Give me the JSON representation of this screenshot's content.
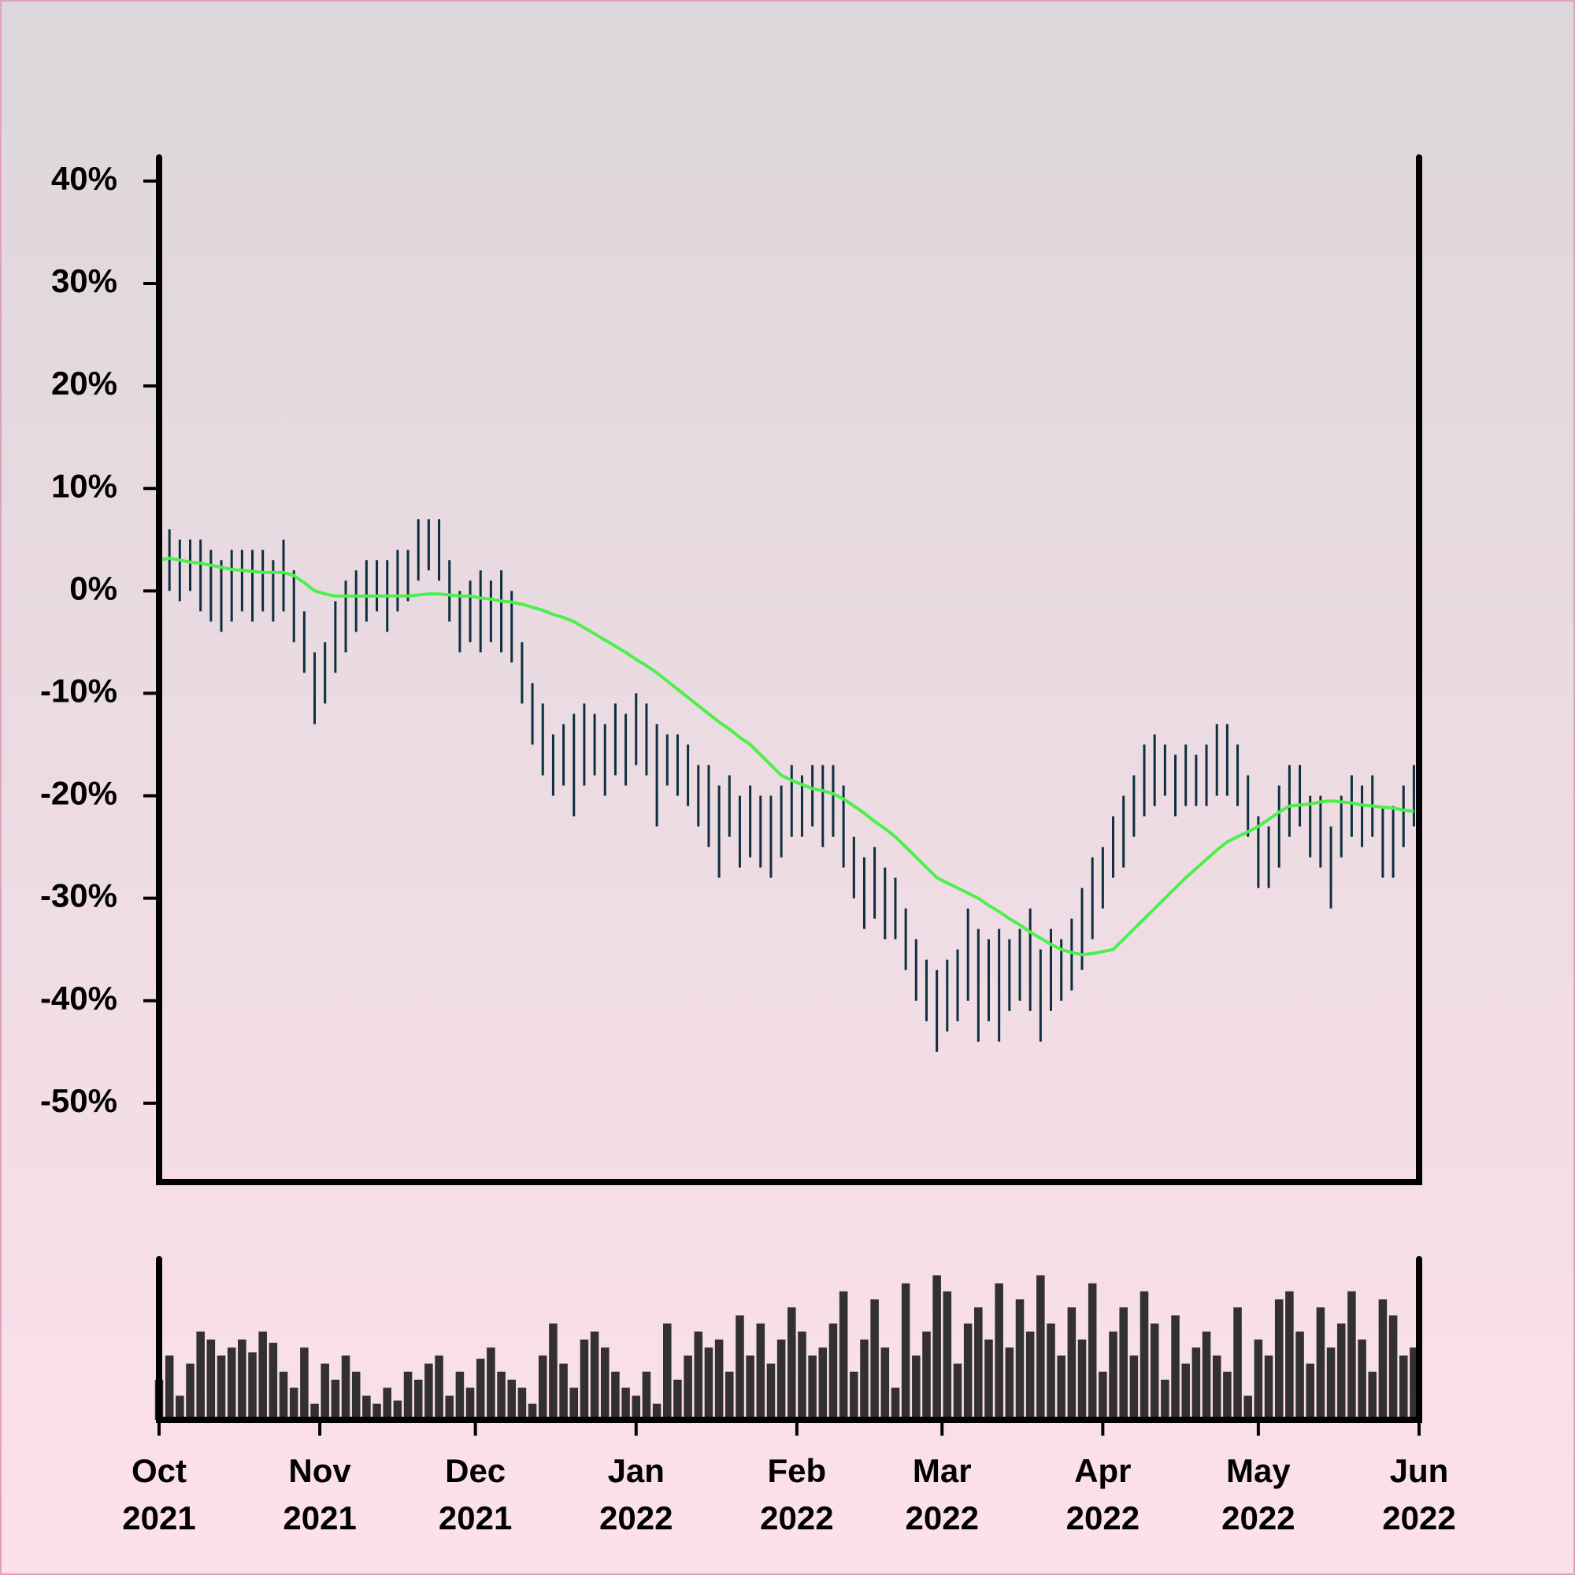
{
  "chart_data": [
    {
      "type": "range",
      "x": [
        0,
        2,
        4,
        6,
        8,
        10,
        12,
        14,
        16,
        18,
        20,
        22,
        24,
        26,
        28,
        30,
        32,
        34,
        36,
        38,
        40,
        42,
        44,
        46,
        48,
        50,
        52,
        54,
        56,
        58,
        60,
        62,
        64,
        66,
        68,
        70,
        72,
        74,
        76,
        78,
        80,
        82,
        84,
        86,
        88,
        90,
        92,
        94,
        96,
        98,
        100,
        102,
        104,
        106,
        108,
        110,
        112,
        114,
        116,
        118,
        120,
        122,
        124,
        126,
        128,
        130,
        132,
        134,
        136,
        138,
        140,
        142,
        144,
        146,
        148,
        150,
        152,
        154,
        156,
        158,
        160,
        162,
        164,
        166,
        168,
        170,
        172,
        174,
        176,
        178,
        180,
        182,
        184,
        186,
        188,
        190,
        192,
        194,
        196,
        198,
        200,
        202,
        204,
        206,
        208,
        210,
        212,
        214,
        216,
        218,
        220,
        222,
        224,
        226,
        228,
        230,
        232,
        234,
        236,
        238,
        240,
        242
      ],
      "low": [
        -1,
        0,
        -1,
        0,
        -2,
        -3,
        -4,
        -3,
        -2,
        -3,
        -2,
        -3,
        -2,
        -5,
        -8,
        -13,
        -11,
        -8,
        -6,
        -4,
        -3,
        -2,
        -4,
        -2,
        -1,
        1,
        2,
        1,
        -3,
        -6,
        -5,
        -6,
        -5,
        -6,
        -7,
        -11,
        -15,
        -18,
        -20,
        -19,
        -22,
        -19,
        -18,
        -20,
        -18,
        -19,
        -17,
        -18,
        -23,
        -19,
        -20,
        -21,
        -23,
        -25,
        -28,
        -24,
        -27,
        -26,
        -27,
        -28,
        -26,
        -24,
        -24,
        -23,
        -25,
        -24,
        -27,
        -30,
        -33,
        -32,
        -34,
        -34,
        -37,
        -40,
        -42,
        -45,
        -43,
        -42,
        -40,
        -44,
        -42,
        -44,
        -41,
        -40,
        -41,
        -44,
        -41,
        -40,
        -39,
        -37,
        -34,
        -31,
        -28,
        -27,
        -24,
        -22,
        -21,
        -20,
        -22,
        -21,
        -21,
        -21,
        -20,
        -20,
        -21,
        -24,
        -29,
        -29,
        -27,
        -24,
        -23,
        -26,
        -27,
        -31,
        -26,
        -24,
        -25,
        -24,
        -28,
        -28,
        -25,
        -23
      ],
      "high": [
        6,
        6,
        5,
        5,
        5,
        4,
        3,
        4,
        4,
        4,
        4,
        3,
        5,
        2,
        -2,
        -6,
        -5,
        -1,
        1,
        2,
        3,
        3,
        3,
        4,
        4,
        7,
        7,
        7,
        3,
        0,
        1,
        2,
        1,
        2,
        0,
        -5,
        -9,
        -11,
        -14,
        -13,
        -12,
        -11,
        -12,
        -13,
        -11,
        -12,
        -10,
        -11,
        -13,
        -14,
        -14,
        -15,
        -17,
        -17,
        -19,
        -18,
        -20,
        -19,
        -20,
        -20,
        -19,
        -17,
        -18,
        -17,
        -17,
        -17,
        -19,
        -24,
        -26,
        -25,
        -27,
        -28,
        -31,
        -34,
        -36,
        -37,
        -36,
        -35,
        -31,
        -33,
        -34,
        -33,
        -34,
        -33,
        -31,
        -35,
        -33,
        -34,
        -32,
        -29,
        -26,
        -25,
        -22,
        -20,
        -18,
        -15,
        -14,
        -15,
        -16,
        -15,
        -16,
        -15,
        -13,
        -13,
        -15,
        -18,
        -22,
        -23,
        -19,
        -17,
        -17,
        -20,
        -20,
        -23,
        -20,
        -18,
        -19,
        -18,
        -21,
        -21,
        -19,
        -17
      ],
      "color": "#0d2f3f",
      "moving_average": {
        "color": "#4cf04c",
        "values": [
          3,
          3.2,
          3,
          2.8,
          2.7,
          2.5,
          2.3,
          2.1,
          2,
          1.9,
          1.8,
          1.8,
          1.8,
          1.5,
          0.8,
          0,
          -0.3,
          -0.5,
          -0.5,
          -0.5,
          -0.5,
          -0.5,
          -0.5,
          -0.5,
          -0.5,
          -0.4,
          -0.3,
          -0.3,
          -0.4,
          -0.5,
          -0.5,
          -0.7,
          -0.8,
          -1,
          -1.1,
          -1.3,
          -1.6,
          -1.9,
          -2.3,
          -2.6,
          -3,
          -3.6,
          -4.2,
          -4.8,
          -5.4,
          -6,
          -6.7,
          -7.3,
          -8,
          -8.8,
          -9.6,
          -10.4,
          -11.2,
          -12,
          -12.8,
          -13.5,
          -14.3,
          -15,
          -16,
          -17,
          -18,
          -18.5,
          -18.9,
          -19.3,
          -19.5,
          -19.8,
          -20.3,
          -21,
          -21.7,
          -22.5,
          -23.2,
          -24,
          -25,
          -26,
          -27,
          -28,
          -28.5,
          -29,
          -29.5,
          -30,
          -30.7,
          -31.3,
          -32,
          -32.6,
          -33.3,
          -33.9,
          -34.5,
          -35,
          -35.3,
          -35.5,
          -35.4,
          -35.2,
          -35,
          -34,
          -33,
          -32,
          -31,
          -30,
          -29,
          -28,
          -27.1,
          -26.2,
          -25.3,
          -24.5,
          -24,
          -23.5,
          -23,
          -22.3,
          -21.6,
          -21,
          -20.9,
          -20.8,
          -20.6,
          -20.5,
          -20.6,
          -20.7,
          -20.9,
          -21,
          -21.1,
          -21.2,
          -21.4,
          -21.5
        ]
      },
      "xlim": [
        0,
        243
      ],
      "ylim": [
        -57.7,
        42.3
      ],
      "yticks": [
        {
          "value": 40,
          "label": "40%"
        },
        {
          "value": 30,
          "label": "30%"
        },
        {
          "value": 20,
          "label": "20%"
        },
        {
          "value": 10,
          "label": "10%"
        },
        {
          "value": 0,
          "label": "0%"
        },
        {
          "value": -10,
          "label": "-10%"
        },
        {
          "value": -20,
          "label": "-20%"
        },
        {
          "value": -30,
          "label": "-30%"
        },
        {
          "value": -40,
          "label": "-40%"
        },
        {
          "value": -50,
          "label": "-50%"
        }
      ]
    },
    {
      "type": "bar",
      "x": [
        0,
        2,
        4,
        6,
        8,
        10,
        12,
        14,
        16,
        18,
        20,
        22,
        24,
        26,
        28,
        30,
        32,
        34,
        36,
        38,
        40,
        42,
        44,
        46,
        48,
        50,
        52,
        54,
        56,
        58,
        60,
        62,
        64,
        66,
        68,
        70,
        72,
        74,
        76,
        78,
        80,
        82,
        84,
        86,
        88,
        90,
        92,
        94,
        96,
        98,
        100,
        102,
        104,
        106,
        108,
        110,
        112,
        114,
        116,
        118,
        120,
        122,
        124,
        126,
        128,
        130,
        132,
        134,
        136,
        138,
        140,
        142,
        144,
        146,
        148,
        150,
        152,
        154,
        156,
        158,
        160,
        162,
        164,
        166,
        168,
        170,
        172,
        174,
        176,
        178,
        180,
        182,
        184,
        186,
        188,
        190,
        192,
        194,
        196,
        198,
        200,
        202,
        204,
        206,
        208,
        210,
        212,
        214,
        216,
        218,
        220,
        222,
        224,
        226,
        228,
        230,
        232,
        234,
        236,
        238,
        240,
        242
      ],
      "values": [
        25,
        40,
        15,
        35,
        55,
        50,
        40,
        45,
        50,
        42,
        55,
        48,
        30,
        20,
        45,
        10,
        35,
        25,
        40,
        30,
        15,
        10,
        20,
        12,
        30,
        25,
        35,
        40,
        15,
        30,
        20,
        38,
        45,
        30,
        25,
        20,
        10,
        40,
        60,
        35,
        20,
        50,
        55,
        45,
        30,
        20,
        15,
        30,
        10,
        60,
        25,
        40,
        55,
        45,
        50,
        30,
        65,
        40,
        60,
        35,
        50,
        70,
        55,
        40,
        45,
        60,
        80,
        30,
        50,
        75,
        45,
        20,
        85,
        40,
        55,
        90,
        80,
        35,
        60,
        70,
        50,
        85,
        45,
        75,
        55,
        90,
        60,
        40,
        70,
        50,
        85,
        30,
        55,
        70,
        40,
        80,
        60,
        25,
        65,
        35,
        45,
        55,
        40,
        30,
        70,
        15,
        50,
        40,
        75,
        80,
        55,
        35,
        70,
        45,
        60,
        80,
        50,
        30,
        75,
        65,
        40,
        45
      ],
      "color": "#333030",
      "xlim": [
        0,
        243
      ],
      "ylim": [
        0,
        100
      ],
      "xticks": [
        {
          "value": 0,
          "label": "Oct\n2021"
        },
        {
          "value": 31,
          "label": "Nov\n2021"
        },
        {
          "value": 61,
          "label": "Dec\n2021"
        },
        {
          "value": 92,
          "label": "Jan\n2022"
        },
        {
          "value": 123,
          "label": "Feb\n2022"
        },
        {
          "value": 151,
          "label": "Mar\n2022"
        },
        {
          "value": 182,
          "label": "Apr\n2022"
        },
        {
          "value": 212,
          "label": "May\n2022"
        },
        {
          "value": 243,
          "label": "Jun\n2022"
        }
      ]
    }
  ]
}
